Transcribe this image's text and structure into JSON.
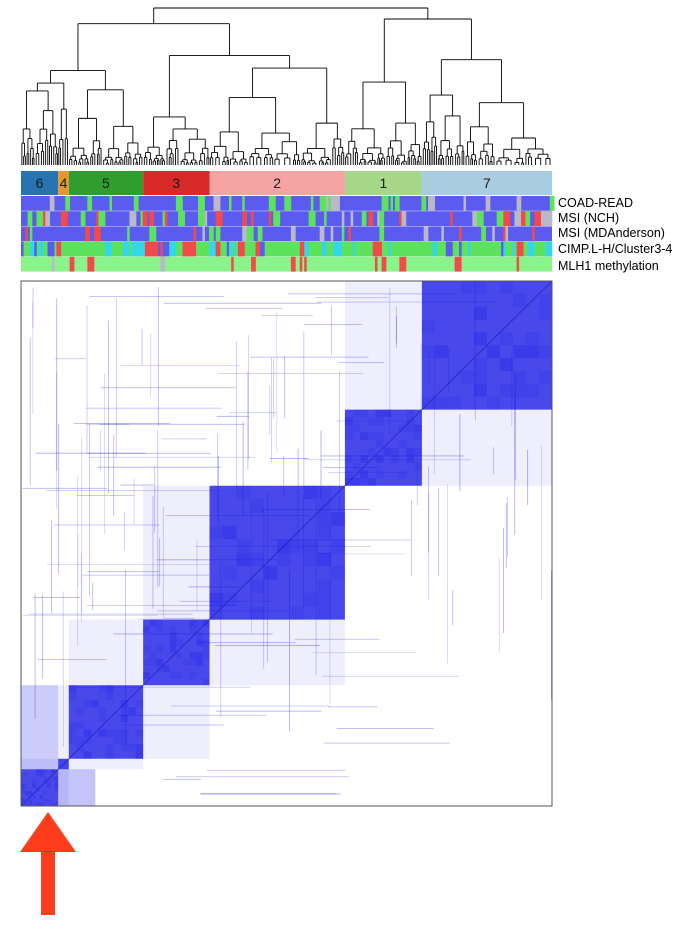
{
  "colors": {
    "heat": "#1515e6",
    "dendrogram": "#000000",
    "arrow": "#ff3d1c",
    "frame": "#555555",
    "track_green": "#5de25d",
    "track_red": "#f24a4a",
    "track_blue": "#5b5bf0",
    "track_gray": "#b9b9c8",
    "track_cyan": "#33d7e6",
    "track_lightgreen": "#8af48a"
  },
  "chart_data": {
    "type": "heatmap",
    "description_matrix": "consensus clustering matrix",
    "clusters": [
      {
        "label": "6",
        "share": 0.07,
        "color": "#2774b0"
      },
      {
        "label": "4",
        "share": 0.02,
        "color": "#e8962a"
      },
      {
        "label": "5",
        "share": 0.14,
        "color": "#2f9e2f"
      },
      {
        "label": "3",
        "share": 0.125,
        "color": "#d92a2a"
      },
      {
        "label": "2",
        "share": 0.255,
        "color": "#f5a3a3"
      },
      {
        "label": "1",
        "share": 0.145,
        "color": "#a7d88a"
      },
      {
        "label": "7",
        "share": 0.245,
        "color": "#a9cde0"
      }
    ],
    "tracks": [
      {
        "label": "COAD-READ"
      },
      {
        "label": "MSI (NCH)"
      },
      {
        "label": "MSI (MDAnderson)"
      },
      {
        "label": "CIMP.L-H/Cluster3-4"
      },
      {
        "label": "MLH1 methylation"
      }
    ],
    "block_order_on_diagonal": [
      "6",
      "4",
      "5",
      "3",
      "2",
      "1",
      "7"
    ],
    "arrow_marks_cluster": "6"
  }
}
